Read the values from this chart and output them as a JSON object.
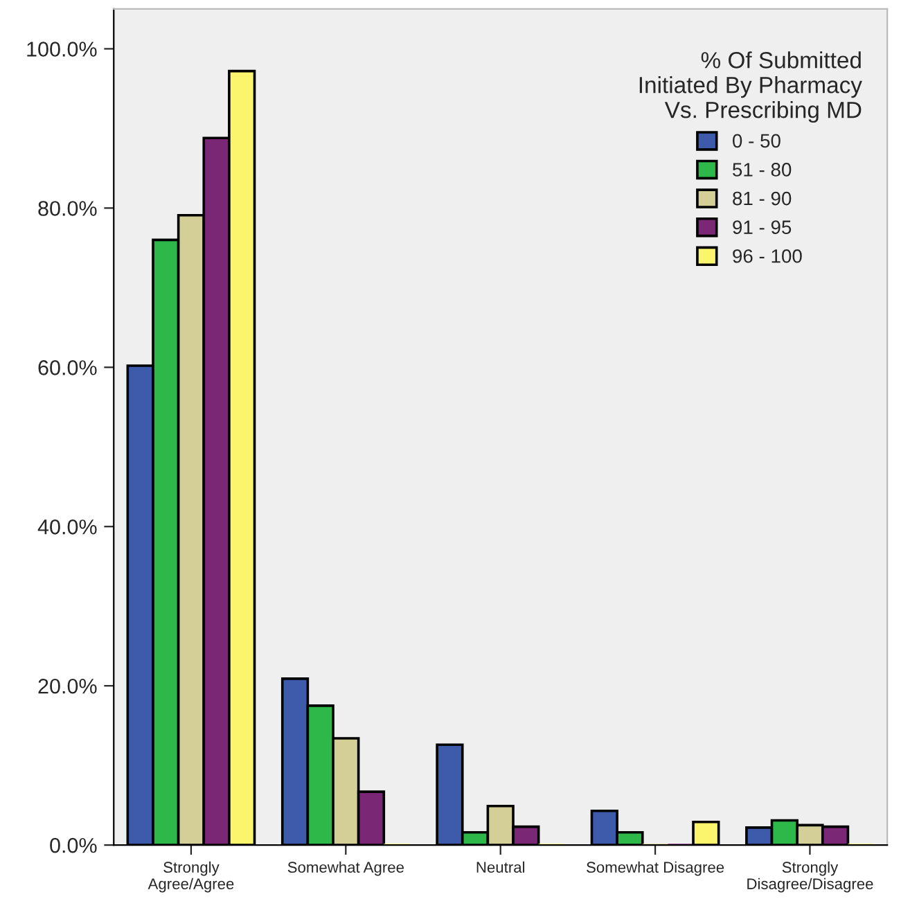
{
  "chart_data": {
    "type": "bar",
    "categories": [
      "Strongly\nAgree/Agree",
      "Somewhat Agree",
      "Neutral",
      "Somewhat Disagree",
      "Strongly\nDisagree/Disagree"
    ],
    "legend_title": "% Of Submitted\nInitiated By Pharmacy\nVs. Prescribing MD",
    "series": [
      {
        "name": "0 - 50",
        "color": "#3d5aab",
        "values": [
          60.2,
          20.9,
          12.6,
          4.3,
          2.2
        ]
      },
      {
        "name": "51 - 80",
        "color": "#2fb84a",
        "values": [
          76.0,
          17.5,
          1.6,
          1.6,
          3.1
        ]
      },
      {
        "name": "81 - 90",
        "color": "#d4cf96",
        "values": [
          79.1,
          13.4,
          4.9,
          0,
          2.5
        ]
      },
      {
        "name": "91 - 95",
        "color": "#7a2776",
        "values": [
          88.8,
          6.7,
          2.3,
          0,
          2.3
        ]
      },
      {
        "name": "96 - 100",
        "color": "#fbf56e",
        "values": [
          97.2,
          0,
          0,
          2.9,
          0
        ]
      }
    ],
    "ylim": [
      0,
      105
    ],
    "yticks": [
      {
        "value": 0,
        "label": "0.0%"
      },
      {
        "value": 20,
        "label": "20.0%"
      },
      {
        "value": 40,
        "label": "40.0%"
      },
      {
        "value": 60,
        "label": "60.0%"
      },
      {
        "value": 80,
        "label": "80.0%"
      },
      {
        "value": 100,
        "label": "100.0%"
      }
    ],
    "grid": false,
    "legend": "top right"
  }
}
